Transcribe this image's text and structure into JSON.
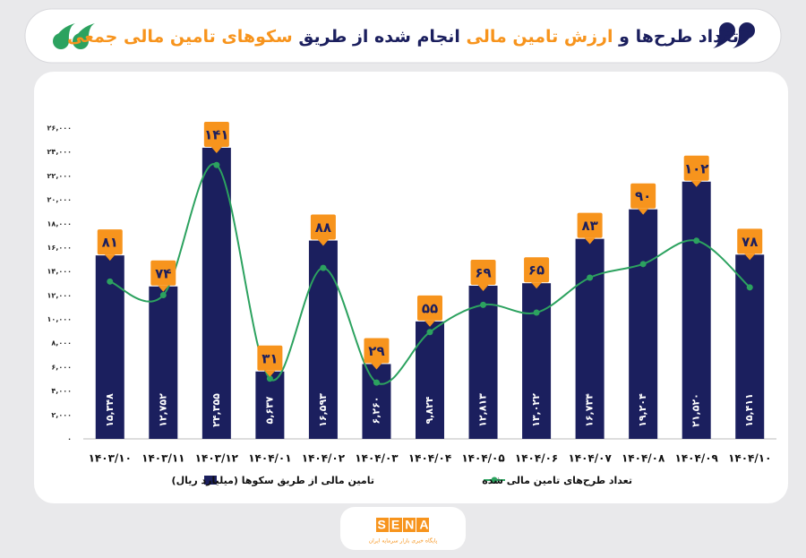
{
  "chart_data": {
    "type": "bar",
    "title_parts": [
      {
        "text": "تعداد طرح‌ها و",
        "color": "#1b1f5e"
      },
      {
        "text": "ارزش تامین مالی",
        "color": "#f7941d"
      },
      {
        "text": "انجام شده از طریق",
        "color": "#1b1f5e"
      },
      {
        "text": "سکوهای تامین مالی جمعی",
        "color": "#f7941d"
      }
    ],
    "categories": [
      "۱۴۰۳/۱۰",
      "۱۴۰۳/۱۱",
      "۱۴۰۳/۱۲",
      "۱۴۰۴/۰۱",
      "۱۴۰۴/۰۲",
      "۱۴۰۴/۰۳",
      "۱۴۰۴/۰۴",
      "۱۴۰۴/۰۵",
      "۱۴۰۴/۰۶",
      "۱۴۰۴/۰۷",
      "۱۴۰۴/۰۸",
      "۱۴۰۴/۰۹",
      "۱۴۰۴/۱۰"
    ],
    "series": [
      {
        "name": "تامین مالی از طریق سکوها (میلیارد ریال)",
        "type": "bar",
        "color": "#1b1f5e",
        "values": [
          15348,
          12752,
          24355,
          5637,
          16593,
          6260,
          9824,
          12813,
          13022,
          16734,
          19204,
          21520,
          15411
        ],
        "value_labels": [
          "۱۵,۳۴۸",
          "۱۲,۷۵۲",
          "۲۴,۳۵۵",
          "۵,۶۳۷",
          "۱۶,۵۹۳",
          "۶,۲۶۰",
          "۹,۸۲۴",
          "۱۲,۸۱۳",
          "۱۳,۰۲۲",
          "۱۶,۷۳۴",
          "۱۹,۲۰۴",
          "۲۱,۵۲۰",
          "۱۵,۴۱۱"
        ]
      },
      {
        "name": "تعداد طرح‌های تامین مالی شده",
        "type": "line",
        "axis": "y2",
        "color": "#2ca25f",
        "label_color": "#f7941d",
        "values": [
          81,
          74,
          141,
          31,
          88,
          29,
          55,
          69,
          65,
          83,
          90,
          102,
          78
        ],
        "value_labels": [
          "۸۱",
          "۷۴",
          "۱۴۱",
          "۳۱",
          "۸۸",
          "۲۹",
          "۵۵",
          "۶۹",
          "۶۵",
          "۸۳",
          "۹۰",
          "۱۰۲",
          "۷۸"
        ]
      }
    ],
    "ylim": [
      0,
      26000
    ],
    "yticks": [
      {
        "value": 0,
        "label": "۰"
      },
      {
        "value": 2000,
        "label": "۲,۰۰۰"
      },
      {
        "value": 4000,
        "label": "۴,۰۰۰"
      },
      {
        "value": 6000,
        "label": "۶,۰۰۰"
      },
      {
        "value": 8000,
        "label": "۸,۰۰۰"
      },
      {
        "value": 10000,
        "label": "۱۰,۰۰۰"
      },
      {
        "value": 12000,
        "label": "۱۲,۰۰۰"
      },
      {
        "value": 14000,
        "label": "۱۴,۰۰۰"
      },
      {
        "value": 16000,
        "label": "۱۶,۰۰۰"
      },
      {
        "value": 18000,
        "label": "۱۸,۰۰۰"
      },
      {
        "value": 20000,
        "label": "۲۰,۰۰۰"
      },
      {
        "value": 22000,
        "label": "۲۲,۰۰۰"
      },
      {
        "value": 24000,
        "label": "۲۴,۰۰۰"
      },
      {
        "value": 26000,
        "label": "۲۶,۰۰۰"
      }
    ],
    "y2lim": [
      0,
      160
    ],
    "grid": false,
    "legend": "bottom"
  },
  "logo": {
    "text": "SENA",
    "subtitle": "پایگاه خبری بازار سرمایه ایران"
  }
}
